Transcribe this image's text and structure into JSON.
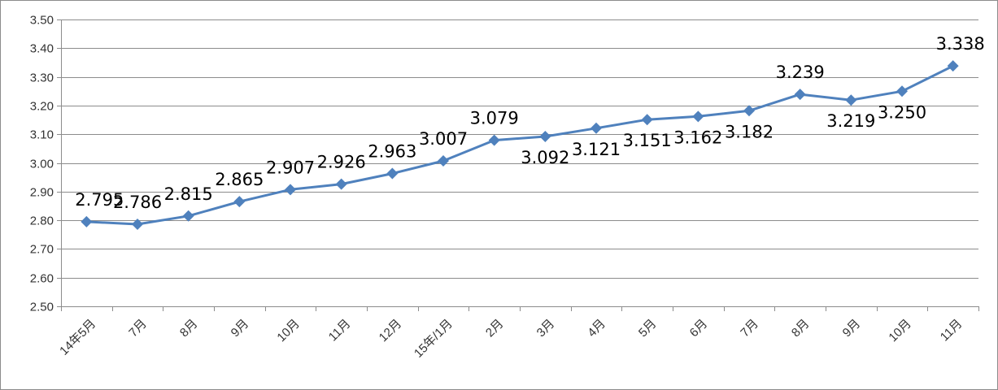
{
  "chart_data": {
    "type": "line",
    "title": "",
    "xlabel": "",
    "ylabel": "",
    "categories": [
      "14年5月",
      "7月",
      "8月",
      "9月",
      "10月",
      "11月",
      "12月",
      "15年/1月",
      "2月",
      "3月",
      "4月",
      "5月",
      "6月",
      "7月",
      "8月",
      "9月",
      "10月",
      "11月"
    ],
    "series": [
      {
        "values": [
          2.795,
          2.786,
          2.815,
          2.865,
          2.907,
          2.926,
          2.963,
          3.007,
          3.079,
          3.092,
          3.121,
          3.151,
          3.162,
          3.182,
          3.239,
          3.219,
          3.25,
          3.338
        ],
        "labels": [
          "2.795",
          "2.786",
          "2.815",
          "2.865",
          "2.907",
          "2.926",
          "2.963",
          "3.007",
          "3.079",
          "3.092",
          "3.121",
          "3.151",
          "3.162",
          "3.182",
          "3.239",
          "3.219",
          "3.250",
          "3.338"
        ],
        "color": "#4f81bd",
        "marker": "diamond"
      }
    ],
    "ylim": [
      2.5,
      3.5
    ],
    "yticks": [
      "2.50",
      "2.60",
      "2.70",
      "2.80",
      "2.90",
      "3.00",
      "3.10",
      "3.20",
      "3.30",
      "3.40",
      "3.50"
    ],
    "grid": true,
    "legend": "none"
  }
}
